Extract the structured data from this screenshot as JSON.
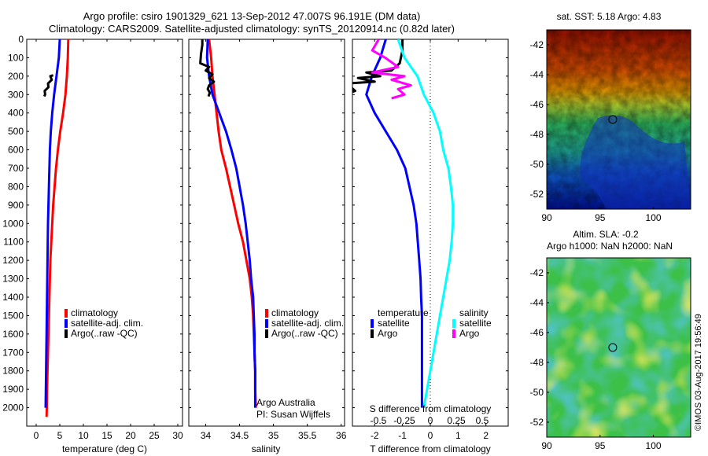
{
  "titles": {
    "line1": "Argo profile: csiro 1901329_621 13-Sep-2012 47.007S 96.191E (DM data)",
    "line2": "Climatology: CARS2009. Satellite-adjusted climatology: synTS_20120914.nc (0.82d later)"
  },
  "side_text": "©IMOS 03-Aug-2017 19:56:49",
  "chart_data": [
    {
      "type": "line",
      "xlabel": "temperature (deg C)",
      "ylim": [
        2100,
        0
      ],
      "xlim": [
        -2,
        31
      ],
      "xticks": [
        "0",
        "5",
        "10",
        "15",
        "20",
        "25",
        "30"
      ],
      "yticks": [
        "0",
        "100",
        "200",
        "300",
        "400",
        "500",
        "600",
        "700",
        "800",
        "900",
        "1000",
        "1100",
        "1200",
        "1300",
        "1400",
        "1500",
        "1600",
        "1700",
        "1800",
        "1900",
        "2000"
      ],
      "legend": [
        "climatology",
        "satellite-adj. clim.",
        "Argo(..raw -QC)"
      ],
      "colors": {
        "climatology": "#ff0000",
        "satellite": "#0000ff",
        "argo": "#000000"
      },
      "series": [
        {
          "name": "climatology",
          "points": [
            [
              6.8,
              0
            ],
            [
              6.7,
              100
            ],
            [
              6.5,
              200
            ],
            [
              6.2,
              300
            ],
            [
              5.7,
              400
            ],
            [
              5.1,
              500
            ],
            [
              4.6,
              600
            ],
            [
              4.2,
              700
            ],
            [
              3.9,
              800
            ],
            [
              3.6,
              900
            ],
            [
              3.4,
              1000
            ],
            [
              3.2,
              1100
            ],
            [
              3.0,
              1200
            ],
            [
              2.9,
              1300
            ],
            [
              2.8,
              1400
            ],
            [
              2.7,
              1500
            ],
            [
              2.6,
              1600
            ],
            [
              2.5,
              1700
            ],
            [
              2.4,
              1800
            ],
            [
              2.3,
              1900
            ],
            [
              2.25,
              2000
            ],
            [
              2.2,
              2050
            ]
          ]
        },
        {
          "name": "satellite-adj. clim.",
          "points": [
            [
              5.0,
              0
            ],
            [
              4.8,
              100
            ],
            [
              4.3,
              200
            ],
            [
              3.8,
              300
            ],
            [
              3.4,
              400
            ],
            [
              3.1,
              500
            ],
            [
              2.9,
              600
            ],
            [
              2.8,
              700
            ],
            [
              2.7,
              800
            ],
            [
              2.6,
              900
            ],
            [
              2.5,
              1000
            ],
            [
              2.45,
              1100
            ],
            [
              2.4,
              1200
            ],
            [
              2.35,
              1300
            ],
            [
              2.3,
              1400
            ],
            [
              2.25,
              1500
            ],
            [
              2.2,
              1600
            ],
            [
              2.15,
              1700
            ],
            [
              2.1,
              1800
            ],
            [
              2.05,
              1900
            ],
            [
              2.0,
              2000
            ]
          ]
        },
        {
          "name": "Argo(..raw -QC)",
          "points": [
            [
              3.6,
              195
            ],
            [
              3.0,
              200
            ],
            [
              3.3,
              220
            ],
            [
              2.5,
              240
            ],
            [
              2.6,
              260
            ],
            [
              1.8,
              280
            ],
            [
              1.9,
              300
            ],
            [
              1.7,
              310
            ]
          ]
        }
      ]
    },
    {
      "type": "line",
      "xlabel": "salinity",
      "ylim": [
        2100,
        0
      ],
      "xlim": [
        33.75,
        36.05
      ],
      "xticks": [
        "34",
        "34.5",
        "35",
        "35.5",
        "36"
      ],
      "legend": [
        "climatology",
        "satellite-adj. clim.",
        "Argo(..raw -QC)"
      ],
      "annotations": [
        "Argo Australia",
        "PI: Susan Wijffels"
      ],
      "series": [
        {
          "name": "climatology",
          "points": [
            [
              34.05,
              0
            ],
            [
              34.08,
              100
            ],
            [
              34.1,
              200
            ],
            [
              34.13,
              300
            ],
            [
              34.16,
              400
            ],
            [
              34.19,
              500
            ],
            [
              34.23,
              600
            ],
            [
              34.3,
              700
            ],
            [
              34.36,
              800
            ],
            [
              34.42,
              900
            ],
            [
              34.48,
              1000
            ],
            [
              34.55,
              1100
            ],
            [
              34.6,
              1200
            ],
            [
              34.65,
              1300
            ],
            [
              34.68,
              1400
            ],
            [
              34.7,
              1500
            ],
            [
              34.71,
              1600
            ],
            [
              34.72,
              1700
            ],
            [
              34.73,
              1800
            ],
            [
              34.73,
              1900
            ],
            [
              34.74,
              2000
            ]
          ]
        },
        {
          "name": "satellite-adj. clim.",
          "points": [
            [
              34.03,
              0
            ],
            [
              34.02,
              100
            ],
            [
              34.05,
              200
            ],
            [
              34.1,
              300
            ],
            [
              34.2,
              400
            ],
            [
              34.3,
              500
            ],
            [
              34.38,
              600
            ],
            [
              34.45,
              700
            ],
            [
              34.5,
              800
            ],
            [
              34.55,
              900
            ],
            [
              34.59,
              1000
            ],
            [
              34.62,
              1100
            ],
            [
              34.65,
              1200
            ],
            [
              34.67,
              1300
            ],
            [
              34.7,
              1400
            ],
            [
              34.71,
              1500
            ],
            [
              34.72,
              1600
            ],
            [
              34.72,
              1700
            ],
            [
              34.73,
              1800
            ],
            [
              34.73,
              1900
            ],
            [
              34.73,
              2000
            ]
          ]
        },
        {
          "name": "Argo(..raw -QC)",
          "points": [
            [
              33.95,
              0
            ],
            [
              33.95,
              30
            ],
            [
              33.93,
              80
            ],
            [
              33.92,
              130
            ],
            [
              34.05,
              150
            ],
            [
              34.0,
              170
            ],
            [
              34.1,
              190
            ],
            [
              34.05,
              210
            ],
            [
              34.12,
              230
            ],
            [
              34.05,
              250
            ],
            [
              34.03,
              270
            ],
            [
              34.06,
              290
            ],
            [
              34.04,
              310
            ]
          ]
        }
      ]
    },
    {
      "type": "line",
      "xlabel": "T difference from climatology",
      "top_xlabel": "S difference from climatology",
      "ylim": [
        2100,
        0
      ],
      "xlim": [
        -2.8,
        2.8
      ],
      "xticks": [
        "-2",
        "-1",
        "0",
        "1",
        "2"
      ],
      "top_xticks": [
        "-0.5",
        "-0.25",
        "0",
        "0.25",
        "0.5"
      ],
      "legend_titles": [
        "temperature",
        "salinity"
      ],
      "legend": [
        "satellite",
        "Argo",
        "satellite",
        "Argo"
      ],
      "colors": {
        "T_satellite": "#0000ff",
        "T_argo": "#000000",
        "S_satellite": "#00ffff",
        "S_argo": "#ff00ff"
      },
      "series": [
        {
          "name": "satellite",
          "points": [
            [
              -1.6,
              0
            ],
            [
              -1.8,
              100
            ],
            [
              -2.1,
              200
            ],
            [
              -2.3,
              300
            ],
            [
              -2.0,
              400
            ],
            [
              -1.6,
              500
            ],
            [
              -1.2,
              600
            ],
            [
              -0.9,
              700
            ],
            [
              -0.75,
              800
            ],
            [
              -0.6,
              900
            ],
            [
              -0.5,
              1000
            ],
            [
              -0.45,
              1100
            ],
            [
              -0.4,
              1200
            ],
            [
              -0.35,
              1300
            ],
            [
              -0.33,
              1400
            ],
            [
              -0.3,
              1500
            ],
            [
              -0.3,
              1600
            ],
            [
              -0.3,
              1700
            ],
            [
              -0.3,
              1800
            ],
            [
              -0.3,
              1900
            ],
            [
              -0.3,
              2000
            ]
          ]
        },
        {
          "name": "Argo",
          "points": [
            [
              -1.0,
              0
            ],
            [
              -1.0,
              60
            ],
            [
              -1.1,
              130
            ],
            [
              -1.4,
              170
            ],
            [
              -2.3,
              180
            ],
            [
              -1.8,
              200
            ],
            [
              -2.6,
              210
            ],
            [
              -2.0,
              230
            ],
            [
              -3.0,
              240
            ],
            [
              -2.7,
              280
            ],
            [
              -3.1,
              300
            ]
          ]
        },
        {
          "name": "satellite",
          "points": [
            [
              -0.5,
              0
            ],
            [
              -0.4,
              100
            ],
            [
              -0.2,
              200
            ],
            [
              -0.1,
              300
            ],
            [
              0.05,
              400
            ],
            [
              0.15,
              500
            ],
            [
              0.2,
              600
            ],
            [
              0.28,
              700
            ],
            [
              0.32,
              800
            ],
            [
              0.35,
              900
            ],
            [
              0.35,
              1000
            ],
            [
              0.33,
              1100
            ],
            [
              0.3,
              1200
            ],
            [
              0.25,
              1300
            ],
            [
              0.2,
              1400
            ],
            [
              0.15,
              1500
            ],
            [
              0.1,
              1600
            ],
            [
              0.05,
              1700
            ],
            [
              0.0,
              1800
            ],
            [
              -0.05,
              1900
            ],
            [
              -0.1,
              2000
            ]
          ]
        },
        {
          "name": "Argo",
          "points": [
            [
              -0.8,
              0
            ],
            [
              -0.9,
              60
            ],
            [
              -0.7,
              100
            ],
            [
              -0.5,
              150
            ],
            [
              -0.9,
              180
            ],
            [
              -0.4,
              200
            ],
            [
              -0.6,
              220
            ],
            [
              -0.3,
              250
            ],
            [
              -0.5,
              270
            ],
            [
              -0.4,
              300
            ],
            [
              -0.6,
              320
            ]
          ]
        }
      ]
    },
    {
      "type": "heatmap",
      "title": "sat. SST: 5.18 Argo: 4.83",
      "xticks": [
        "90",
        "95",
        "100"
      ],
      "yticks": [
        "-42",
        "-44",
        "-46",
        "-48",
        "-50",
        "-52"
      ],
      "xlim": [
        90,
        103.5
      ],
      "ylim": [
        -53,
        -41
      ],
      "marker": {
        "lon": 96.19,
        "lat": -47.0
      }
    },
    {
      "type": "heatmap",
      "title": "Altim. SLA: -0.2",
      "subtitle": "Argo h1000: NaN h2000: NaN",
      "xticks": [
        "90",
        "95",
        "100"
      ],
      "yticks": [
        "-42",
        "-44",
        "-46",
        "-48",
        "-50",
        "-52"
      ],
      "xlim": [
        90,
        103.5
      ],
      "ylim": [
        -53,
        -41
      ],
      "marker": {
        "lon": 96.19,
        "lat": -47.0
      }
    }
  ]
}
